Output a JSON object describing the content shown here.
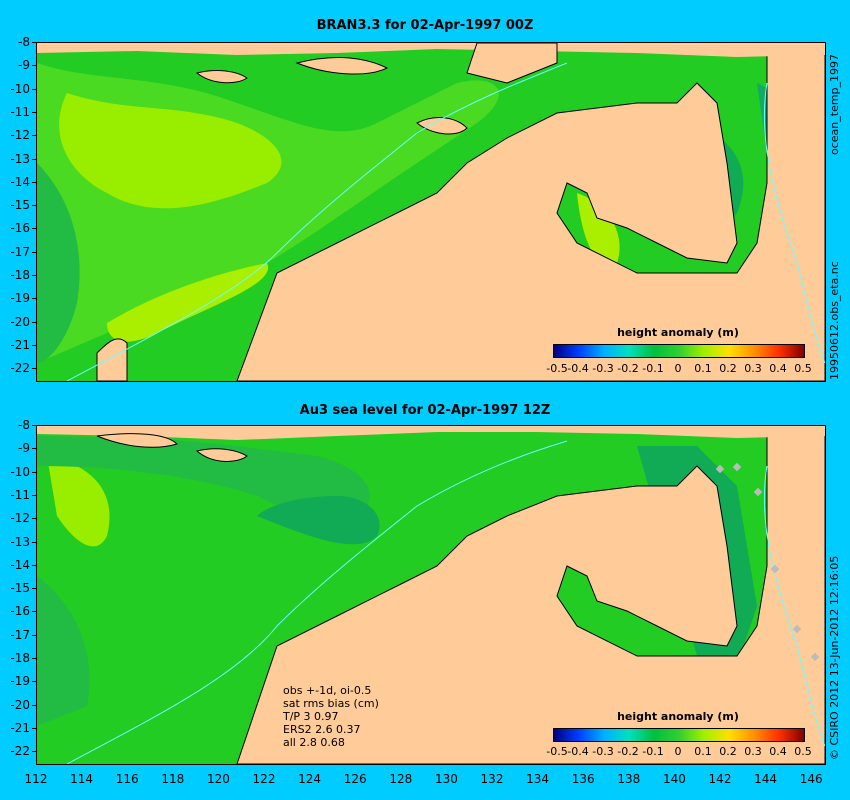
{
  "top_panel": {
    "title": "BRAN3.3 for 02-Apr-1997 00Z",
    "side_label": "19950612.obs_eta.nc",
    "side_label_top": "ocean_temp_1997",
    "colorbar_title": "height anomaly (m)"
  },
  "bottom_panel": {
    "title": "Au3 sea level  for 02-Apr-1997 12Z",
    "side_label": "© CSIRO 2012  13-Jun-2012 12:16:05",
    "colorbar_title": "height anomaly (m)",
    "notes": [
      "obs +-1d, oi-0.5",
      "sat rms bias (cm)",
      "T/P  3 0.97",
      "ERS2 2.6 0.37",
      "all 2.8 0.68"
    ]
  },
  "y_ticks": [
    "-8",
    "-9",
    "-10",
    "-11",
    "-12",
    "-13",
    "-14",
    "-15",
    "-16",
    "-17",
    "-18",
    "-19",
    "-20",
    "-21",
    "-22"
  ],
  "x_ticks": [
    "112",
    "114",
    "116",
    "118",
    "120",
    "122",
    "124",
    "126",
    "128",
    "130",
    "132",
    "134",
    "136",
    "138",
    "140",
    "142",
    "144",
    "146"
  ],
  "colorbar_ticks": [
    "-0.5",
    "-0.4",
    "-0.3",
    "-0.2",
    "-0.1",
    "0",
    "0.1",
    "0.2",
    "0.3",
    "0.4",
    "0.5"
  ],
  "colors": {
    "land": "#ffcc99",
    "ocean": "#22cc22",
    "background": "#00ccff",
    "coastline": "#000000",
    "contour": "#66ffff"
  }
}
